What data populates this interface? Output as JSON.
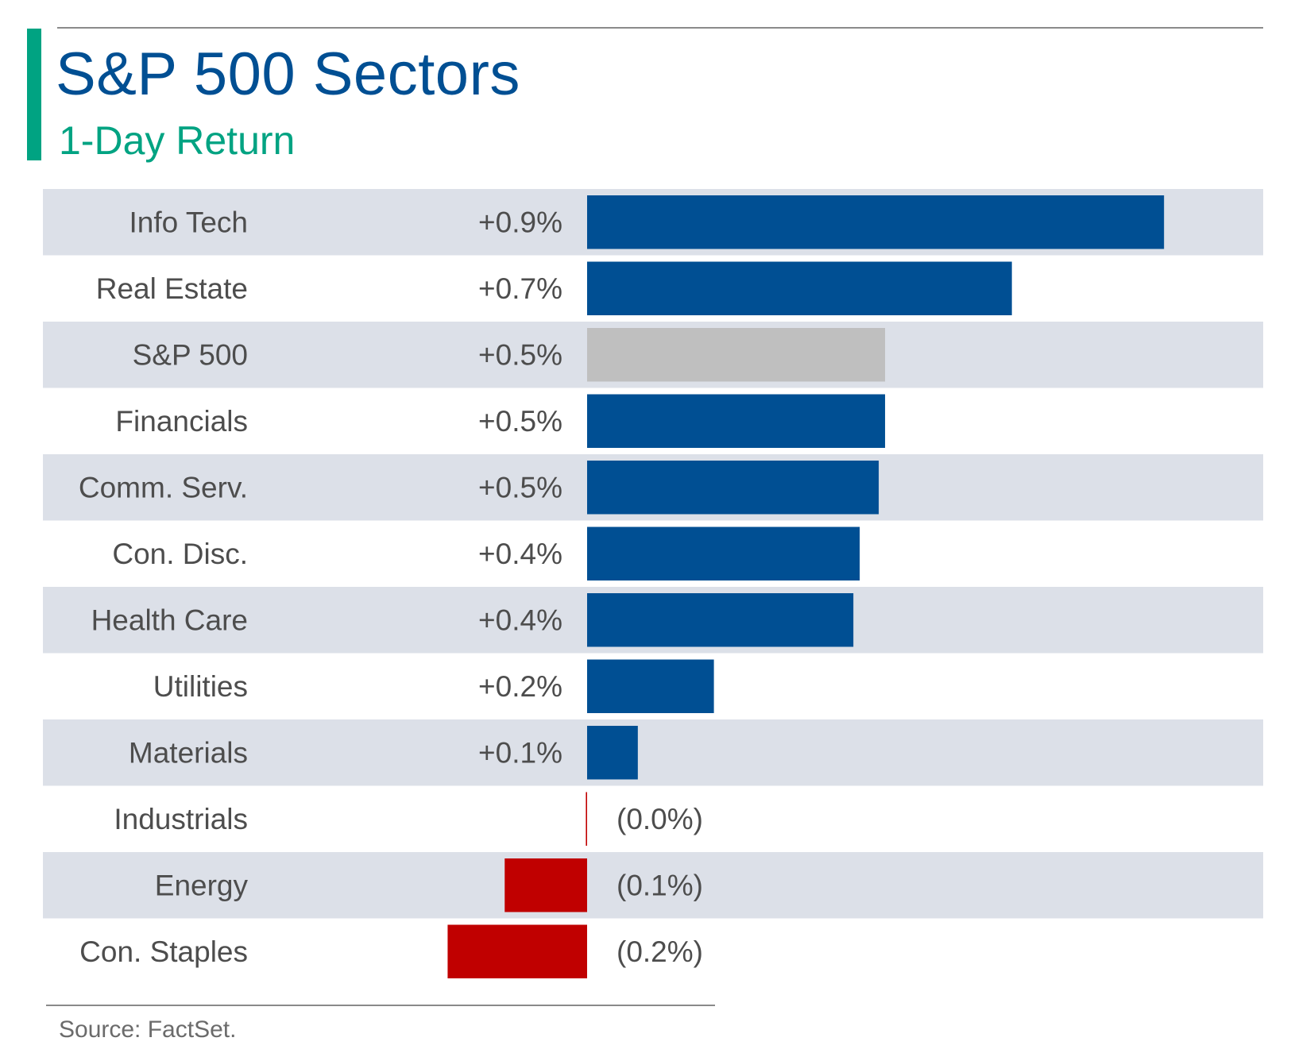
{
  "header": {
    "title": "S&P 500 Sectors",
    "subtitle": "1-Day Return"
  },
  "footer": {
    "source": "Source: FactSet."
  },
  "colors": {
    "positive": "#004F93",
    "negative": "#C00000",
    "benchmark": "#BFBFBF",
    "row_shade": "#DCE0E8",
    "title": "#004F93",
    "accent": "#00A382",
    "label_text": "#4D4D4D"
  },
  "chart_data": {
    "type": "bar",
    "orientation": "horizontal",
    "title": "S&P 500 Sectors",
    "subtitle": "1-Day Return",
    "categories": [
      "Info Tech",
      "Real Estate",
      "S&P 500",
      "Financials",
      "Comm. Serv.",
      "Con. Disc.",
      "Health Care",
      "Utilities",
      "Materials",
      "Industrials",
      "Energy",
      "Con. Staples"
    ],
    "values": [
      0.91,
      0.67,
      0.47,
      0.47,
      0.46,
      0.43,
      0.42,
      0.2,
      0.08,
      -0.002,
      -0.13,
      -0.22
    ],
    "value_labels": [
      "+0.9%",
      "+0.7%",
      "+0.5%",
      "+0.5%",
      "+0.5%",
      "+0.4%",
      "+0.4%",
      "+0.2%",
      "+0.1%",
      "(0.0%)",
      "(0.1%)",
      "(0.2%)"
    ],
    "highlight": "S&P 500",
    "xlim": [
      -0.22,
      1.0
    ],
    "grid": false,
    "legend": "none"
  }
}
